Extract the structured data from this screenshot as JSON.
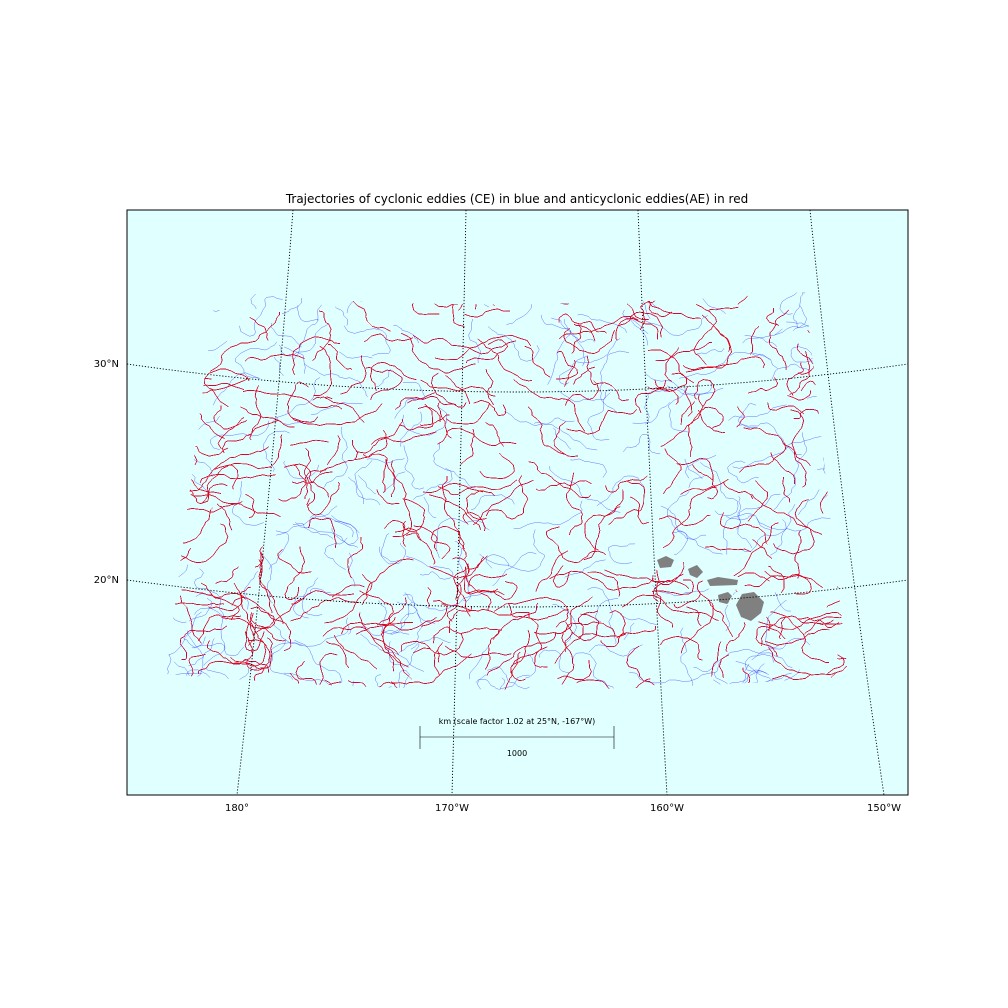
{
  "title": "Trajectories of cyclonic eddies (CE) in blue and anticyclonic eddies(AE) in red",
  "colors": {
    "ocean": "#e0ffff",
    "land": "#808080",
    "cyclonic": "#0000ff",
    "anticyclonic": "#ff0000",
    "graticule": "#000000"
  },
  "lon_labels": [
    "180°",
    "170°W",
    "160°W",
    "150°W"
  ],
  "lat_labels": [
    "30°N",
    "20°N"
  ],
  "scale_bar": {
    "caption": "km (scale factor 1.02 at 25°N, -167°W)",
    "value_label": "1000",
    "length_km": 1000
  },
  "legend": {
    "cyclonic": "cyclonic eddies (CE)",
    "anticyclonic": "anticyclonic eddies(AE)"
  }
}
